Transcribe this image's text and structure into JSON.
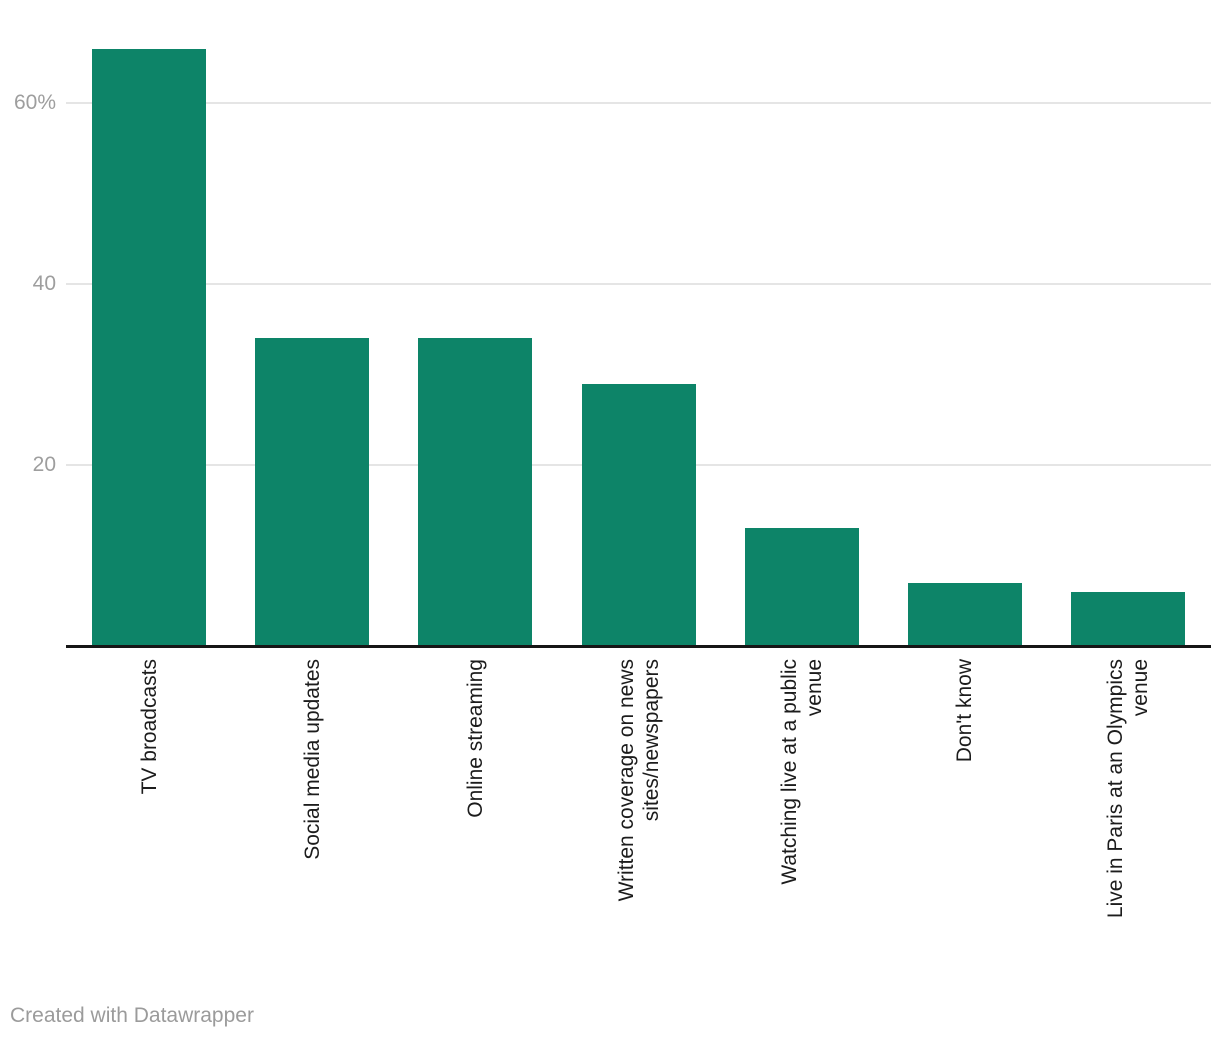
{
  "chart_data": {
    "type": "bar",
    "categories": [
      "TV broadcasts",
      "Social media updates",
      "Online streaming",
      "Written coverage on news sites/newspapers",
      "Watching live at a public venue",
      "Don't know",
      "Live in Paris at an Olympics venue"
    ],
    "categories_wrapped": [
      [
        "TV broadcasts"
      ],
      [
        "Social media updates"
      ],
      [
        "Online streaming"
      ],
      [
        "Written coverage on news",
        "sites/newspapers"
      ],
      [
        "Watching live at a public",
        "venue"
      ],
      [
        "Don't know"
      ],
      [
        "Live in Paris at an Olympics",
        "venue"
      ]
    ],
    "values": [
      66,
      34,
      34,
      29,
      13,
      7,
      6
    ],
    "title": "",
    "xlabel": "",
    "ylabel": "",
    "ylim": [
      0,
      66
    ],
    "yticks": [
      {
        "value": 20,
        "label": "20"
      },
      {
        "value": 40,
        "label": "40"
      },
      {
        "value": 60,
        "label": "60%"
      }
    ],
    "grid": true,
    "legend": "none",
    "orientation": "vertical"
  },
  "colors": {
    "bar": "#0d8468",
    "grid": "#e5e5e5",
    "axis": "#161616",
    "tick_label": "#9e9e9e",
    "category_label": "#1c1c1c",
    "footer_text": "#9b9b9b",
    "background": "#ffffff"
  },
  "footer": {
    "attribution": "Created with Datawrapper"
  }
}
